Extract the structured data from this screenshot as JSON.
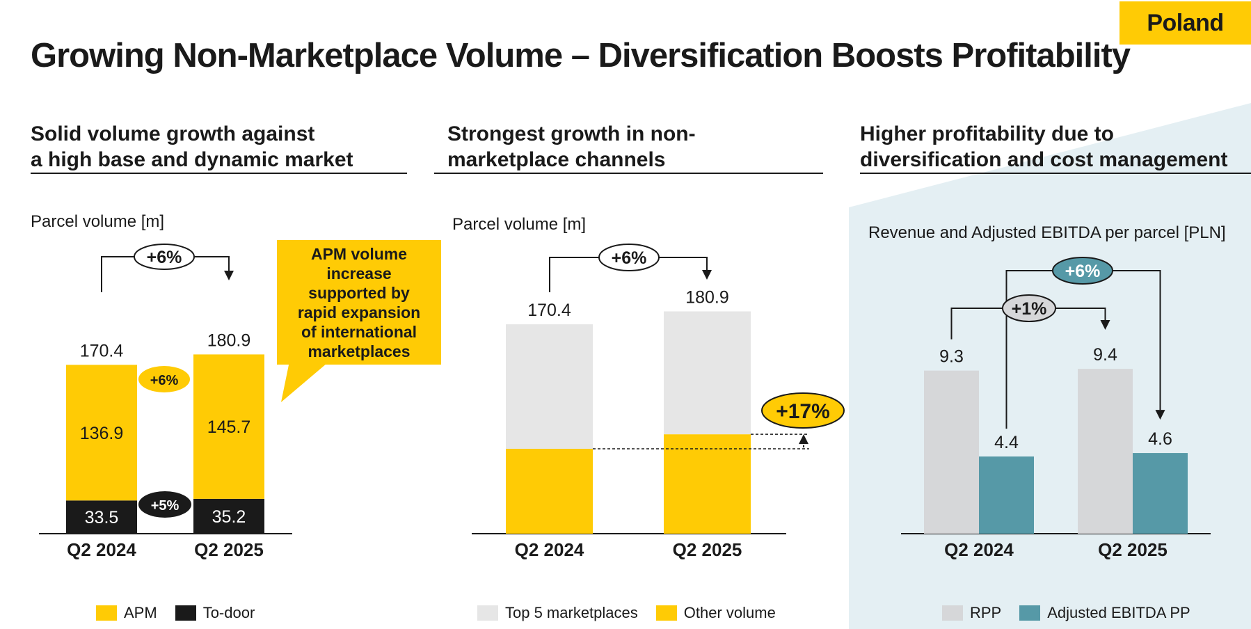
{
  "badge": "Poland",
  "title": "Growing Non-Marketplace Volume – Diversification Boosts Profitability",
  "colors": {
    "yellow": "#ffcb05",
    "black": "#1a1a1a",
    "gray": "#e6e6e6",
    "rppgray": "#d6d7d9",
    "teal": "#5699a7",
    "panel": "#e4eff3"
  },
  "sections": [
    {
      "heading_line1": "Solid volume growth against",
      "heading_line2": "a high base and dynamic market"
    },
    {
      "heading_line1": "Strongest growth in non-",
      "heading_line2": "marketplace channels"
    },
    {
      "heading_line1": "Higher profitability due to",
      "heading_line2": "diversification and cost management"
    }
  ],
  "callout": {
    "line1": "APM volume",
    "line2": "increase",
    "line3": "supported by",
    "line4": "rapid expansion",
    "line5": "of international",
    "line6": "marketplaces"
  },
  "chart_data": [
    {
      "type": "bar",
      "stacked": true,
      "ylabel": "Parcel volume [m]",
      "categories": [
        "Q2 2024",
        "Q2 2025"
      ],
      "series": [
        {
          "name": "To-door",
          "values": [
            33.5,
            35.2
          ],
          "color": "#1a1a1a"
        },
        {
          "name": "APM",
          "values": [
            136.9,
            145.7
          ],
          "color": "#ffcb05"
        }
      ],
      "totals": [
        "170.4",
        "180.9"
      ],
      "annotations": {
        "total_growth": "+6%",
        "apm_growth": "+6%",
        "todoor_growth": "+5%"
      }
    },
    {
      "type": "bar",
      "stacked": true,
      "ylabel": "Parcel volume [m]",
      "categories": [
        "Q2 2024",
        "Q2 2025"
      ],
      "series": [
        {
          "name": "Other volume",
          "values": [
            69.1,
            80.9
          ],
          "color": "#ffcb05"
        },
        {
          "name": "Top 5 marketplaces",
          "values": [
            101.3,
            100.0
          ],
          "color": "#e6e6e6"
        }
      ],
      "totals": [
        "170.4",
        "180.9"
      ],
      "annotations": {
        "total_growth": "+6%",
        "other_growth": "+17%"
      }
    },
    {
      "type": "bar",
      "grouped": true,
      "ylabel": "Revenue and Adjusted EBITDA per parcel [PLN]",
      "categories": [
        "Q2 2024",
        "Q2 2025"
      ],
      "series": [
        {
          "name": "RPP",
          "values": [
            9.3,
            9.4
          ],
          "labels": [
            "9.3",
            "9.4"
          ],
          "color": "#d6d7d9"
        },
        {
          "name": "Adjusted EBITDA PP",
          "values": [
            4.4,
            4.6
          ],
          "labels": [
            "4.4",
            "4.6"
          ],
          "color": "#5699a7"
        }
      ],
      "annotations": {
        "rpp_growth": "+1%",
        "ebitda_growth": "+6%"
      }
    }
  ],
  "legends": {
    "c1": [
      {
        "label": "APM",
        "color": "#ffcb05"
      },
      {
        "label": "To-door",
        "color": "#1a1a1a"
      }
    ],
    "c2": [
      {
        "label": "Top 5 marketplaces",
        "color": "#e6e6e6"
      },
      {
        "label": "Other volume",
        "color": "#ffcb05"
      }
    ],
    "c3": [
      {
        "label": "RPP",
        "color": "#d6d7d9"
      },
      {
        "label": "Adjusted EBITDA PP",
        "color": "#5699a7"
      }
    ]
  }
}
